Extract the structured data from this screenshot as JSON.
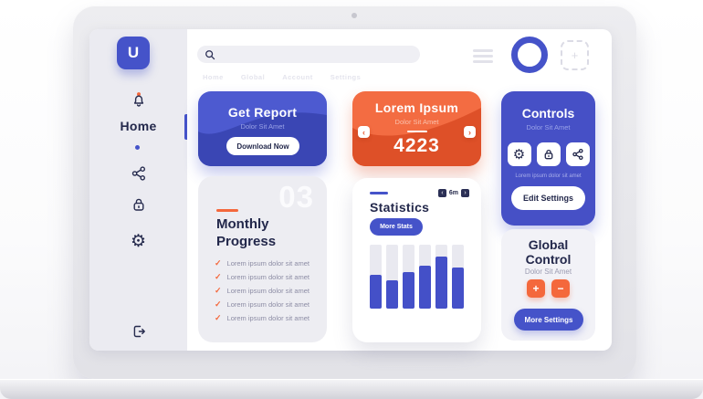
{
  "logo": {
    "letter": "U"
  },
  "glyphs": {
    "gear": "⚙",
    "check": "✓",
    "plus": "+",
    "minus": "−",
    "prev": "‹",
    "next": "›",
    "add": "+"
  },
  "sidebar": {
    "home_label": "Home",
    "icon_names": [
      "bell-icon",
      "share-icon",
      "lock-icon",
      "gear-icon",
      "logout-icon"
    ]
  },
  "topbar": {
    "search_placeholder": "",
    "nav_links": [
      "Home",
      "Global",
      "Account",
      "Settings"
    ]
  },
  "cards": {
    "get_report": {
      "title": "Get Report",
      "subtitle": "Dolor Sit Amet",
      "button_label": "Download Now"
    },
    "lorem_ipsum": {
      "title": "Lorem Ipsum",
      "subtitle": "Dolor Sit Amet",
      "value": "4223"
    },
    "controls": {
      "title": "Controls",
      "subtitle": "Dolor Sit Amet",
      "caption": "Lorem ipsum dolor sit amet",
      "button_label": "Edit Settings"
    },
    "monthly_progress": {
      "number": "03",
      "title": "Monthly Progress",
      "items": [
        "Lorem ipsum dolor sit amet",
        "Lorem ipsum dolor sit amet",
        "Lorem ipsum dolor sit amet",
        "Lorem ipsum dolor sit amet",
        "Lorem ipsum dolor sit amet"
      ]
    },
    "statistics": {
      "title": "Statistics",
      "button_label": "More Stats",
      "period_label": "6m"
    },
    "global_control": {
      "title": "Global Control",
      "subtitle": "Dolor Sit Amet",
      "button_label": "More Settings"
    }
  },
  "chart_data": {
    "type": "bar",
    "title": "Statistics",
    "period": "6m",
    "values": [
      53,
      44,
      57,
      67,
      81,
      64
    ],
    "ylim": [
      0,
      100
    ],
    "note": "six unlabeled bars, fill height estimated as % of track",
    "grid": false,
    "legend": false
  },
  "colors": {
    "primary_blue": "#4553C9",
    "deep_blue": "#3A46B4",
    "orange": "#F36C42",
    "deep_orange": "#DD5029",
    "accent_orange": "#F4683C",
    "navy_text": "#23284B",
    "sidebar_bg": "#EBEBF1"
  }
}
